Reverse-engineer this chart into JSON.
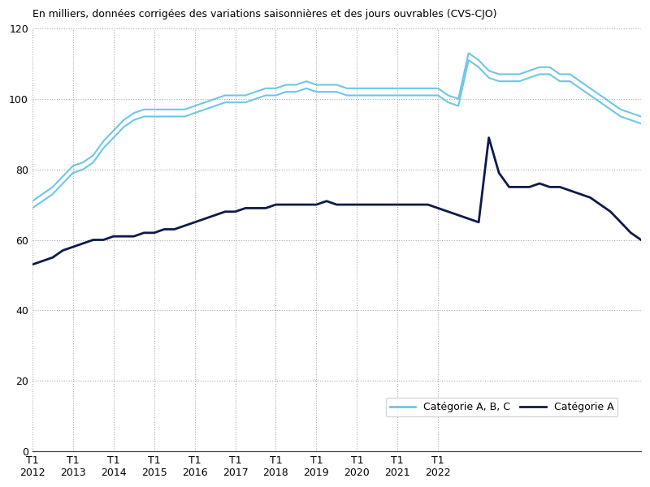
{
  "title": "En milliers, données corrigées des variations saisonnières et des jours ouvrables (CVS-CJO)",
  "x_labels": [
    "T1\n2012",
    "T1\n2013",
    "T1\n2014",
    "T1\n2015",
    "T1\n2016",
    "T1\n2017",
    "T1\n2018",
    "T1\n2019",
    "T1\n2020",
    "T1\n2021",
    "T1\n2022"
  ],
  "x_ticks": [
    0,
    4,
    8,
    12,
    16,
    20,
    24,
    28,
    32,
    36,
    40
  ],
  "cat_abc_upper": [
    71,
    73,
    75,
    78,
    81,
    82,
    84,
    88,
    91,
    94,
    96,
    97,
    97,
    97,
    97,
    97,
    98,
    99,
    100,
    101,
    101,
    101,
    102,
    103,
    103,
    104,
    104,
    105,
    104,
    104,
    104,
    103,
    103,
    103,
    103,
    103,
    103,
    103,
    103,
    103,
    103,
    101,
    100,
    113,
    111,
    108,
    107,
    107,
    107,
    108,
    109,
    109,
    107,
    107,
    105,
    103,
    101,
    99,
    97,
    96,
    95
  ],
  "cat_abc_lower": [
    69,
    71,
    73,
    76,
    79,
    80,
    82,
    86,
    89,
    92,
    94,
    95,
    95,
    95,
    95,
    95,
    96,
    97,
    98,
    99,
    99,
    99,
    100,
    101,
    101,
    102,
    102,
    103,
    102,
    102,
    102,
    101,
    101,
    101,
    101,
    101,
    101,
    101,
    101,
    101,
    101,
    99,
    98,
    111,
    109,
    106,
    105,
    105,
    105,
    106,
    107,
    107,
    105,
    105,
    103,
    101,
    99,
    97,
    95,
    94,
    93
  ],
  "cat_a": [
    53,
    54,
    55,
    57,
    58,
    59,
    60,
    60,
    61,
    61,
    61,
    62,
    62,
    63,
    63,
    64,
    65,
    66,
    67,
    68,
    68,
    69,
    69,
    69,
    70,
    70,
    70,
    70,
    70,
    71,
    70,
    70,
    70,
    70,
    70,
    70,
    70,
    70,
    70,
    70,
    69,
    68,
    67,
    66,
    65,
    89,
    79,
    75,
    75,
    75,
    76,
    75,
    75,
    74,
    73,
    72,
    70,
    68,
    65,
    62,
    60
  ],
  "ylim": [
    0,
    120
  ],
  "yticks": [
    0,
    20,
    40,
    60,
    80,
    100,
    120
  ],
  "color_abc": "#6EC6E8",
  "color_a": "#0D1A4A",
  "legend_abc": "Catégorie A, B, C",
  "legend_a": "Catégorie A",
  "background_color": "#FFFFFF",
  "grid_color": "#AAAAAA"
}
